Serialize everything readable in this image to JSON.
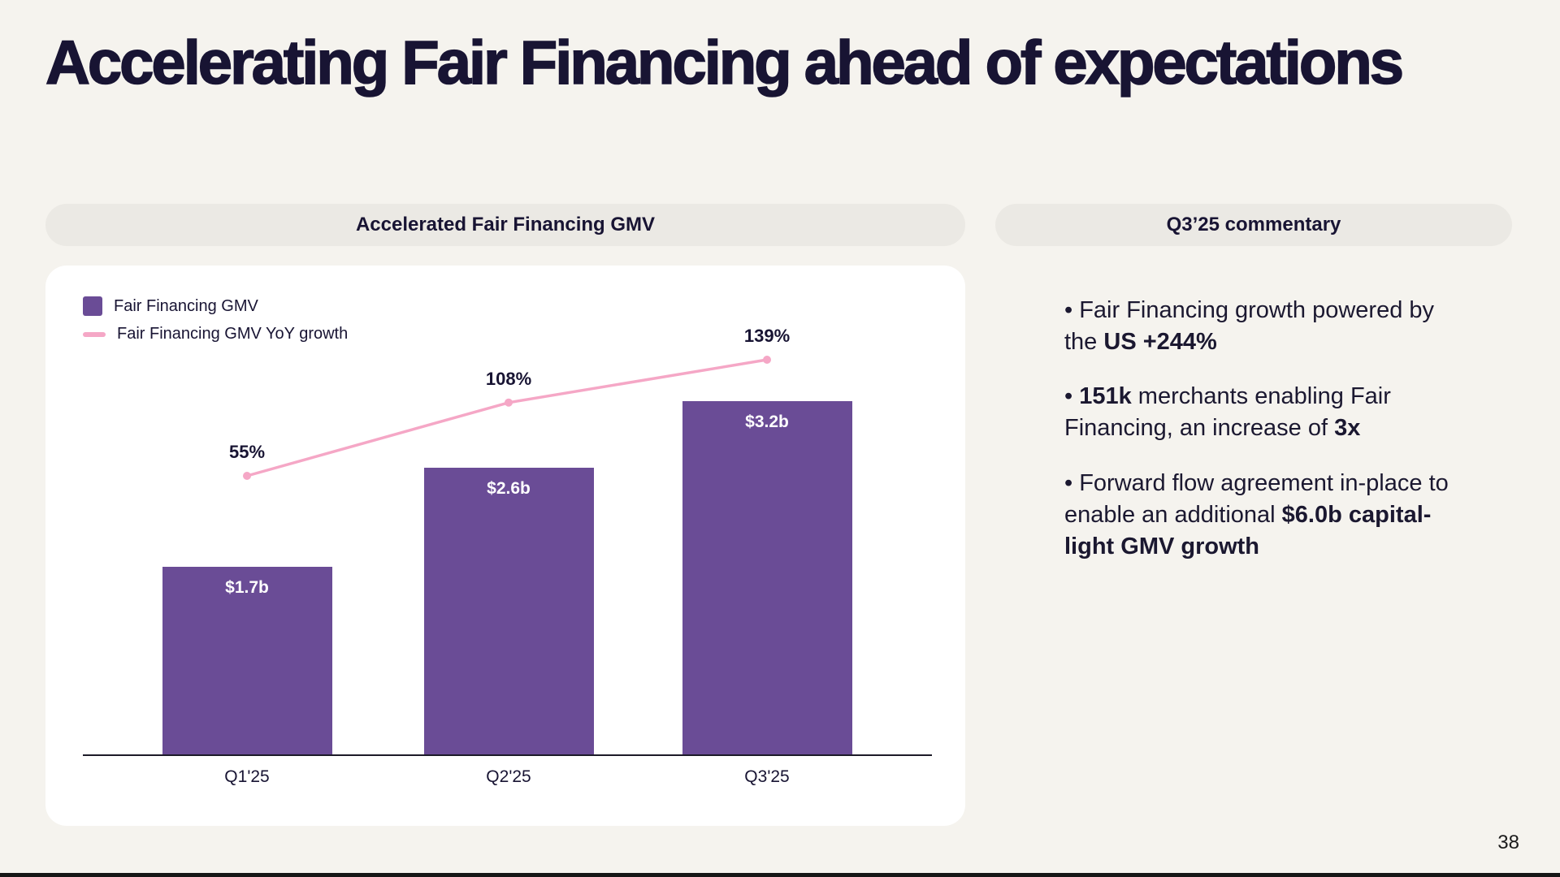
{
  "slide": {
    "title": "Accelerating Fair Financing ahead of expectations",
    "page_number": "38"
  },
  "commentary": {
    "header": "Q3’25 commentary",
    "bullet1": {
      "pre": "• Fair Financing growth powered by the ",
      "bold": "US +244%"
    },
    "bullet2": {
      "pre": "• ",
      "bold1": "151k",
      "mid": " merchants enabling Fair Financing, an increase of ",
      "bold2": "3x"
    },
    "bullet3": {
      "pre": "• Forward flow agreement in-place to enable an additional ",
      "bold": "$6.0b capital-light GMV growth"
    }
  },
  "chart_data": {
    "type": "bar+line",
    "title": "Accelerated Fair Financing GMV",
    "categories": [
      "Q1'25",
      "Q2'25",
      "Q3'25"
    ],
    "series": [
      {
        "name": "Fair Financing GMV",
        "type": "bar",
        "values": [
          1.7,
          2.6,
          3.2
        ],
        "labels": [
          "$1.7b",
          "$2.6b",
          "$3.2b"
        ],
        "color": "#6a4c96"
      },
      {
        "name": "Fair Financing GMV YoY growth",
        "type": "line",
        "values": [
          55,
          108,
          139
        ],
        "labels": [
          "55%",
          "108%",
          "139%"
        ],
        "color": "#f5a7c6"
      }
    ],
    "legend_position": "top-left",
    "grid": false,
    "y_axis_visible": false
  },
  "colors": {
    "background": "#f5f3ee",
    "text": "#181433",
    "pill_background": "#ebe9e4",
    "bar_purple": "#6a4c96",
    "line_pink": "#f5a7c6"
  }
}
